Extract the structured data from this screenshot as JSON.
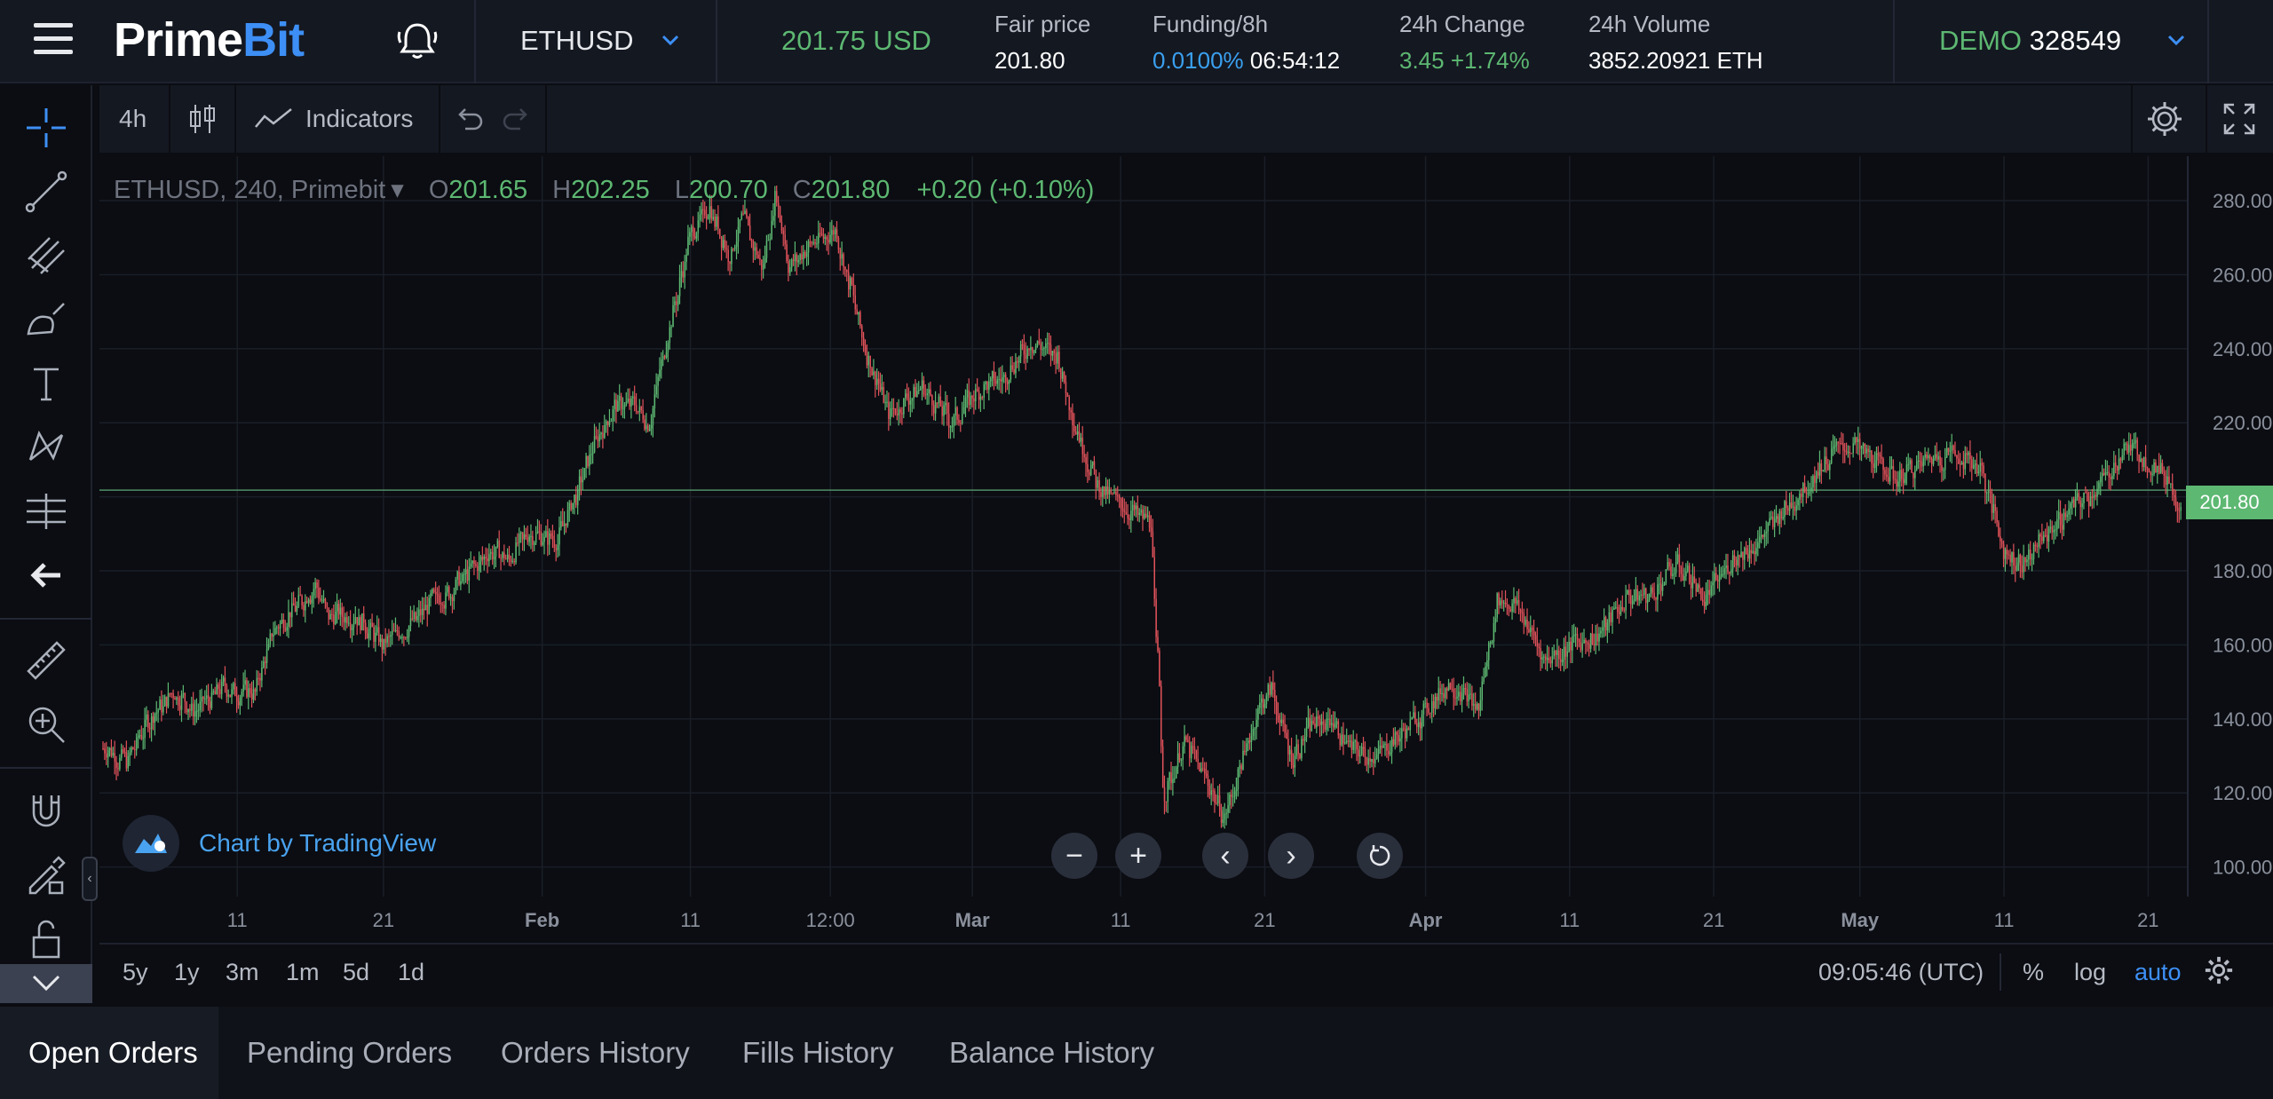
{
  "header": {
    "brand_prime": "Prime",
    "brand_bit": "Bit",
    "symbol": "ETHUSD",
    "last_price": "201.75 USD",
    "fair_price_label": "Fair price",
    "fair_price_value": "201.80",
    "funding_label": "Funding/8h",
    "funding_rate": "0.0100%",
    "funding_countdown": "06:54:12",
    "change_label": "24h Change",
    "change_value": "3.45 +1.74%",
    "volume_label": "24h Volume",
    "volume_value": "3852.20921 ETH",
    "account_mode": "DEMO",
    "account_id": "328549"
  },
  "toolbar": {
    "interval": "4h",
    "indicators_label": "Indicators"
  },
  "legend": {
    "title": "ETHUSD, 240, Primebit",
    "o_label": "O",
    "o_value": "201.65",
    "h_label": "H",
    "h_value": "202.25",
    "l_label": "L",
    "l_value": "200.70",
    "c_label": "C",
    "c_value": "201.80",
    "change": "+0.20 (+0.10%)"
  },
  "chart_attribution": "Chart by TradingView",
  "bottom": {
    "ranges": [
      "5y",
      "1y",
      "3m",
      "1m",
      "5d",
      "1d"
    ],
    "clock": "09:05:46 (UTC)",
    "percent_label": "%",
    "log_label": "log",
    "auto_label": "auto"
  },
  "tabs": [
    "Open Orders",
    "Pending Orders",
    "Orders History",
    "Fills History",
    "Balance History"
  ],
  "colors": {
    "up": "#5db872",
    "down": "#e0525a",
    "accent": "#3d8ff5"
  },
  "chart_data": {
    "type": "candlestick",
    "y_ticks": [
      "280.00",
      "260.00",
      "240.00",
      "220.00",
      "200.00",
      "180.00",
      "160.00",
      "140.00",
      "120.00",
      "100.00"
    ],
    "x_ticks": [
      "11",
      "21",
      "Feb",
      "11",
      "12:00",
      "Mar",
      "11",
      "21",
      "Apr",
      "11",
      "21",
      "May",
      "11",
      "21"
    ],
    "ylim": [
      92,
      292
    ],
    "last_price": "201.80",
    "grid": true,
    "series_anchors": [
      [
        0,
        132
      ],
      [
        3,
        128
      ],
      [
        6,
        140
      ],
      [
        10,
        147
      ],
      [
        13,
        142
      ],
      [
        17,
        148
      ],
      [
        22,
        147
      ],
      [
        25,
        164
      ],
      [
        29,
        172
      ],
      [
        31,
        176
      ],
      [
        33,
        168
      ],
      [
        37,
        168
      ],
      [
        41,
        160
      ],
      [
        45,
        165
      ],
      [
        49,
        172
      ],
      [
        53,
        177
      ],
      [
        57,
        185
      ],
      [
        60,
        183
      ],
      [
        63,
        190
      ],
      [
        67,
        188
      ],
      [
        70,
        200
      ],
      [
        73,
        215
      ],
      [
        76,
        225
      ],
      [
        79,
        225
      ],
      [
        81,
        220
      ],
      [
        84,
        245
      ],
      [
        87,
        270
      ],
      [
        90,
        278
      ],
      [
        93,
        265
      ],
      [
        95,
        275
      ],
      [
        98,
        262
      ],
      [
        100,
        282
      ],
      [
        102,
        262
      ],
      [
        105,
        268
      ],
      [
        109,
        272
      ],
      [
        113,
        242
      ],
      [
        117,
        222
      ],
      [
        122,
        230
      ],
      [
        126,
        220
      ],
      [
        130,
        228
      ],
      [
        134,
        232
      ],
      [
        138,
        242
      ],
      [
        142,
        238
      ],
      [
        145,
        218
      ],
      [
        148,
        203
      ],
      [
        150,
        200
      ],
      [
        153,
        196
      ],
      [
        156,
        193
      ],
      [
        158,
        120
      ],
      [
        161,
        133
      ],
      [
        164,
        125
      ],
      [
        167,
        113
      ],
      [
        169,
        124
      ],
      [
        172,
        142
      ],
      [
        174,
        148
      ],
      [
        177,
        130
      ],
      [
        180,
        138
      ],
      [
        183,
        140
      ],
      [
        186,
        132
      ],
      [
        190,
        130
      ],
      [
        194,
        137
      ],
      [
        197,
        142
      ],
      [
        201,
        150
      ],
      [
        205,
        143
      ],
      [
        208,
        173
      ],
      [
        211,
        170
      ],
      [
        215,
        156
      ],
      [
        219,
        160
      ],
      [
        223,
        163
      ],
      [
        227,
        172
      ],
      [
        231,
        174
      ],
      [
        235,
        182
      ],
      [
        239,
        172
      ],
      [
        243,
        183
      ],
      [
        247,
        188
      ],
      [
        251,
        197
      ],
      [
        255,
        205
      ],
      [
        258,
        212
      ],
      [
        261,
        214
      ],
      [
        264,
        210
      ],
      [
        268,
        205
      ],
      [
        272,
        210
      ],
      [
        276,
        212
      ],
      [
        280,
        208
      ],
      [
        284,
        184
      ],
      [
        287,
        183
      ],
      [
        290,
        190
      ],
      [
        293,
        196
      ],
      [
        296,
        200
      ],
      [
        299,
        205
      ],
      [
        302,
        214
      ],
      [
        305,
        210
      ],
      [
        308,
        205
      ],
      [
        310,
        198
      ]
    ]
  }
}
